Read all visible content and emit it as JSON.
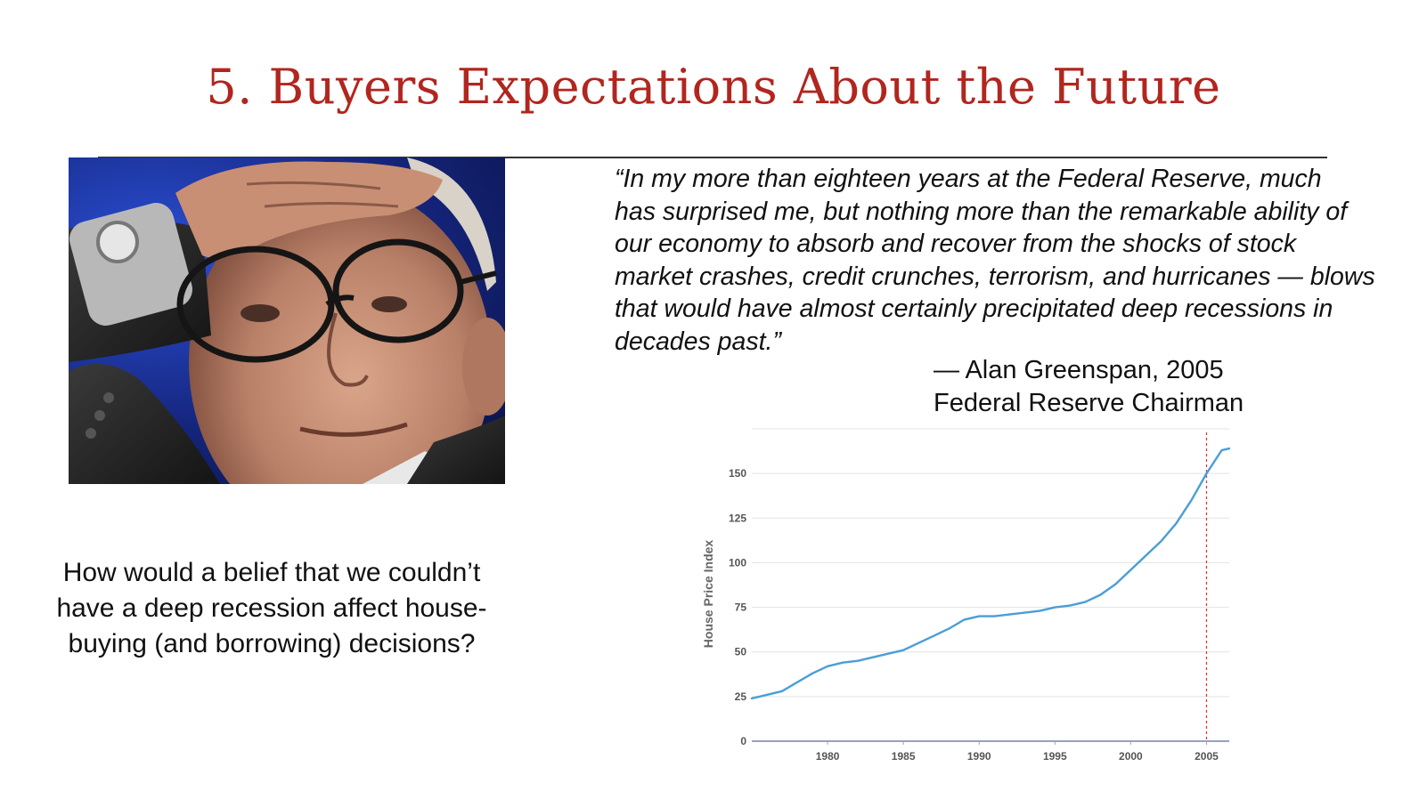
{
  "slide": {
    "title": "5. Buyers Expectations About the Future",
    "quote_lines": [
      " “In my more than eighteen years at the Federal Reserve, much",
      "has surprised me, but nothing more than the remarkable ability of",
      "our economy to absorb and recover from the shocks of stock",
      "market crashes, credit crunches, terrorism, and hurricanes — blows",
      "that would have almost certainly precipitated deep recessions in",
      "decades past.”"
    ],
    "attribution_name": "— Alan Greenspan, 2005",
    "attribution_role": "Federal Reserve Chairman",
    "question_lines": [
      "How would a belief that we couldn’t",
      "have a deep recession affect house-",
      "buying (and borrowing) decisions?"
    ]
  },
  "chart_data": {
    "type": "line",
    "title": "",
    "xlabel": "",
    "ylabel": "House Price Index",
    "xlim": [
      1975,
      2006.5
    ],
    "ylim": [
      0,
      175
    ],
    "yticks": [
      0,
      25,
      50,
      75,
      100,
      125,
      150
    ],
    "xticks": [
      1980,
      1985,
      1990,
      1995,
      2000,
      2005
    ],
    "grid": "horizontal",
    "series_color": "#4a9ed6",
    "marker_line": {
      "x": 2005,
      "color": "#d33",
      "style": "dashed"
    },
    "series": [
      {
        "x": [
          1975,
          1976,
          1977,
          1978,
          1979,
          1980,
          1981,
          1982,
          1983,
          1984,
          1985,
          1986,
          1987,
          1988,
          1989,
          1990,
          1991,
          1992,
          1993,
          1994,
          1995,
          1996,
          1997,
          1998,
          1999,
          2000,
          2001,
          2002,
          2003,
          2004,
          2005,
          2006,
          2006.5
        ],
        "y": [
          24,
          26,
          28,
          33,
          38,
          42,
          44,
          45,
          47,
          49,
          51,
          55,
          59,
          63,
          68,
          70,
          70,
          71,
          72,
          73,
          75,
          76,
          78,
          82,
          88,
          96,
          104,
          112,
          122,
          135,
          150,
          163,
          164
        ]
      }
    ]
  }
}
